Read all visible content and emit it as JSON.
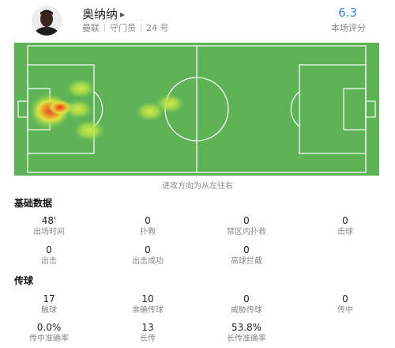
{
  "player": {
    "name": "奥纳纳",
    "team": "曼联",
    "position": "守门员",
    "number": "24 号",
    "rating": "6.3",
    "rating_label": "本场评分"
  },
  "heatmap": {
    "direction_label": "进攻方向为从左往右"
  },
  "sections": {
    "basic_title": "基础数据",
    "passing_title": "传球"
  },
  "basic_stats": [
    {
      "value": "48'",
      "label": "出场时间"
    },
    {
      "value": "0",
      "label": "扑救"
    },
    {
      "value": "0",
      "label": "禁区内扑救"
    },
    {
      "value": "0",
      "label": "击球"
    },
    {
      "value": "0",
      "label": "出击"
    },
    {
      "value": "0",
      "label": "出击成功"
    },
    {
      "value": "0",
      "label": "高球拦截"
    }
  ],
  "passing_stats": [
    {
      "value": "17",
      "label": "触球"
    },
    {
      "value": "10",
      "label": "准确传球"
    },
    {
      "value": "0",
      "label": "威胁传球"
    },
    {
      "value": "0",
      "label": "传中"
    },
    {
      "value": "0.0%",
      "label": "传中准确率"
    },
    {
      "value": "13",
      "label": "长传"
    },
    {
      "value": "53.8%",
      "label": "长传准确率"
    }
  ],
  "colors": {
    "pitch": "#5fb357",
    "lines": "#ffffff",
    "accent": "#3f86d8"
  }
}
